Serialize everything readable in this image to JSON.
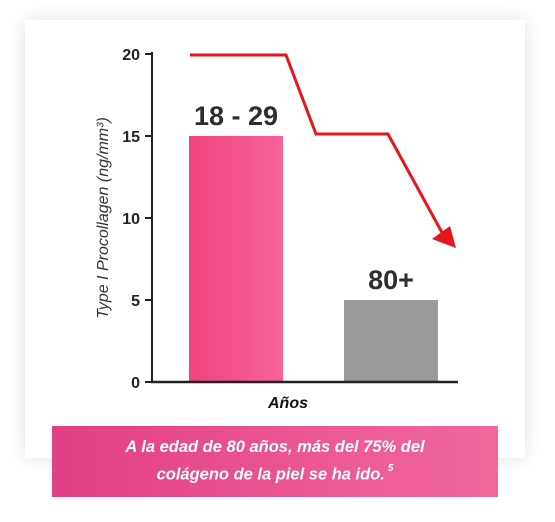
{
  "chart_data": {
    "type": "bar",
    "categories": [
      "18 - 29",
      "80+"
    ],
    "values": [
      15,
      5
    ],
    "bar_colors": [
      "#f0437f",
      "#999999"
    ],
    "xlabel": "Años",
    "ylabel": "Type I Procollagen (ng/mm³)",
    "ylim": [
      0,
      20
    ],
    "yticks": [
      0,
      5,
      10,
      15,
      20
    ],
    "trend_arrow": {
      "color": "#e8151c",
      "direction": "decreasing"
    }
  },
  "footer": {
    "line1": "A la edad de 80 años, más del 75% del",
    "line2": "colágeno de la piel se ha ido.",
    "footnote": "5"
  }
}
